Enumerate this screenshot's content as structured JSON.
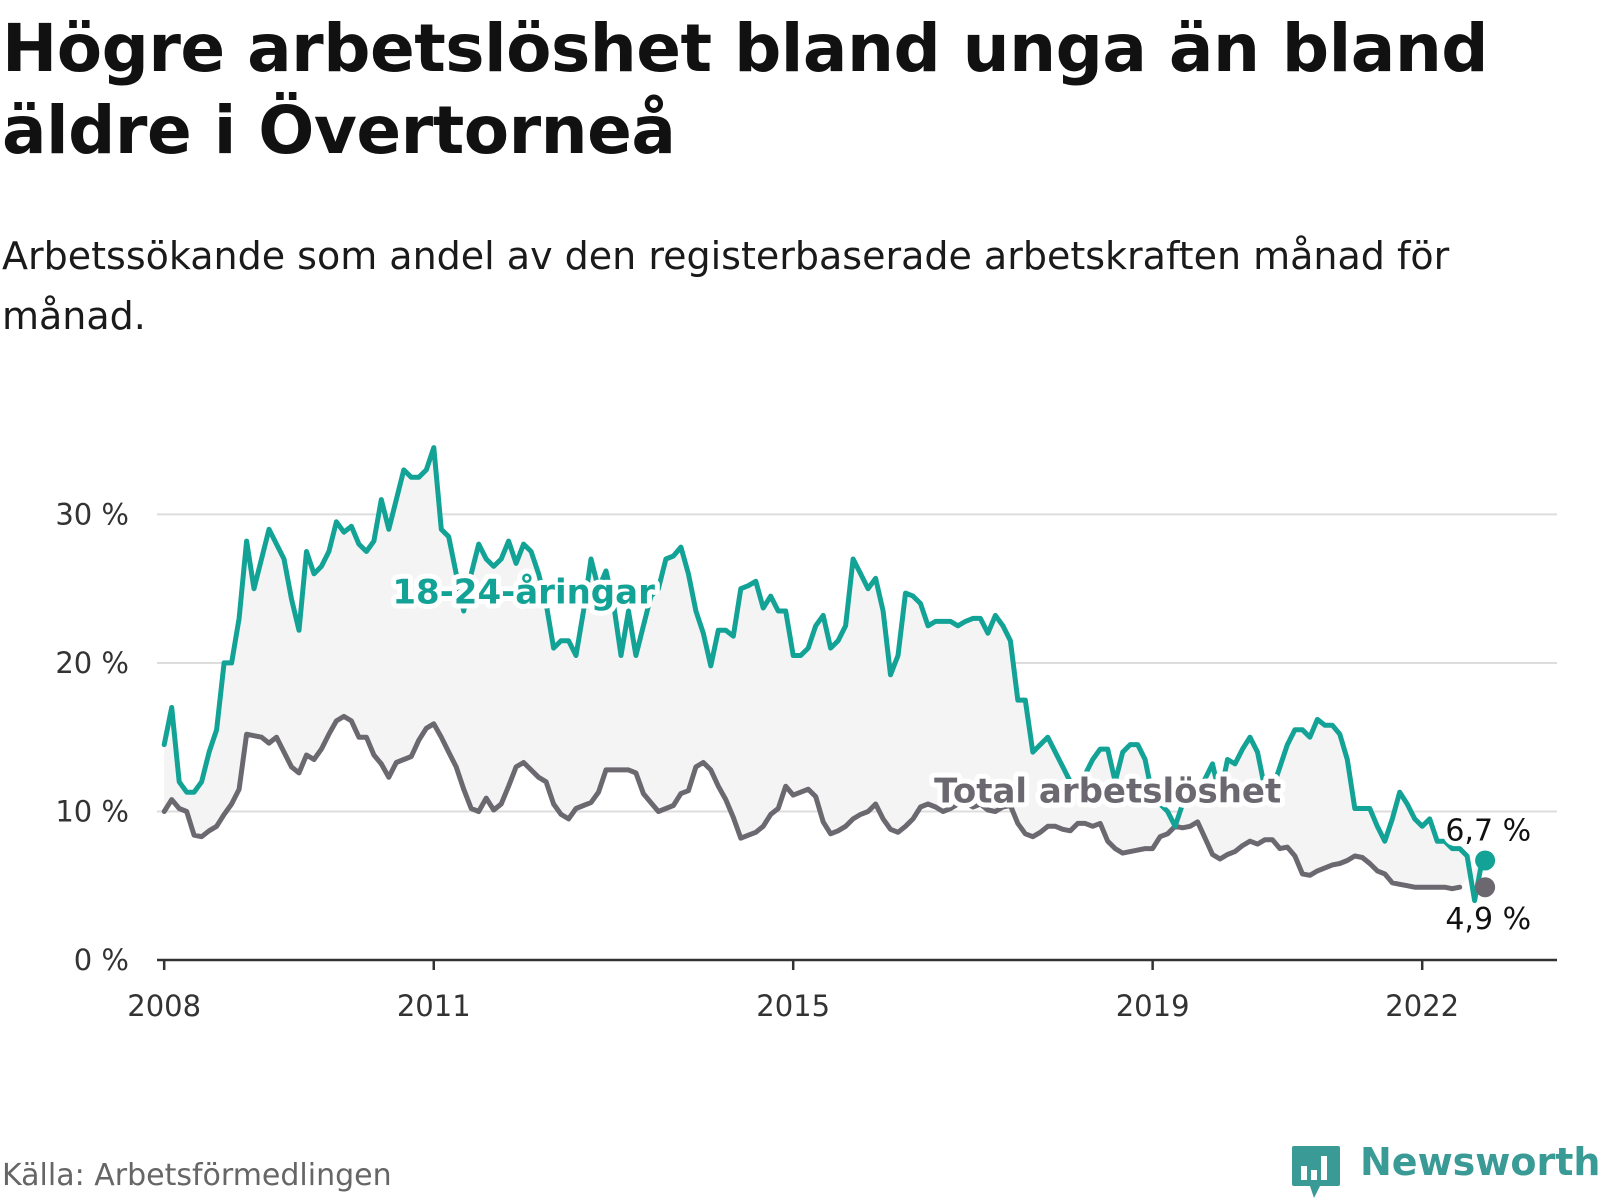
{
  "title": "Högre arbetslöshet bland unga än bland äldre i Övertorneå",
  "subtitle": "Arbetssökande som andel av den registerbaserade arbetskraften månad för månad.",
  "source": "Källa: Arbetsförmedlingen",
  "brand": {
    "name": "Newsworthy",
    "logo_icon": "bar-chart-bubble-icon"
  },
  "colors": {
    "youth": "#13a396",
    "total": "#6b6870",
    "band": "#f4f4f4",
    "grid": "#dddddd",
    "axis": "#333333"
  },
  "chart_data": {
    "type": "line",
    "title": "Högre arbetslöshet bland unga än bland äldre i Övertorneå",
    "xlabel": "",
    "ylabel": "",
    "ylim": [
      0,
      34
    ],
    "xlim": [
      2007.92,
      2023.5
    ],
    "yticks": [
      0,
      10,
      20,
      30
    ],
    "ytick_labels": [
      "0 %",
      "10 %",
      "20 %",
      "30 %"
    ],
    "xticks": [
      2008,
      2011,
      2015,
      2019,
      2022
    ],
    "xtick_labels": [
      "2008",
      "2011",
      "2015",
      "2019",
      "2022"
    ],
    "grid": true,
    "x_start": 2008.0,
    "x_step_months": 1,
    "series": [
      {
        "name": "18-24-åringar",
        "label": "18-24-åringar",
        "end_label": "6,7 %",
        "end_value": 6.7,
        "values": [
          14.5,
          17.0,
          12.0,
          11.3,
          11.3,
          12.0,
          14.0,
          15.5,
          20.0,
          20.0,
          23.0,
          28.2,
          25.0,
          27.0,
          29.0,
          28.0,
          27.0,
          24.3,
          22.2,
          27.5,
          26.0,
          26.5,
          27.5,
          29.5,
          28.8,
          29.2,
          28.0,
          27.5,
          28.2,
          31.0,
          29.0,
          31.0,
          33.0,
          32.5,
          32.5,
          33.0,
          34.5,
          29.0,
          28.5,
          26.0,
          23.5,
          26.0,
          28.0,
          27.0,
          26.5,
          27.0,
          28.2,
          26.7,
          28.0,
          27.5,
          26.0,
          24.0,
          21.0,
          21.5,
          21.5,
          20.5,
          23.5,
          27.0,
          25.0,
          26.2,
          24.0,
          20.5,
          23.5,
          20.5,
          22.5,
          24.5,
          25.0,
          27.0,
          27.2,
          27.8,
          26.0,
          23.5,
          22.0,
          19.8,
          22.2,
          22.2,
          21.8,
          25.0,
          25.2,
          25.5,
          23.7,
          24.5,
          23.5,
          23.5,
          20.5,
          20.5,
          21.0,
          22.5,
          23.2,
          21.0,
          21.5,
          22.5,
          27.0,
          26.0,
          25.0,
          25.7,
          23.5,
          19.2,
          20.5,
          24.7,
          24.5,
          24.0,
          22.5,
          22.8,
          22.8,
          22.8,
          22.5,
          22.8,
          23.0,
          23.0,
          22.0,
          23.2,
          22.5,
          21.5,
          17.5,
          17.5,
          14.0,
          14.5,
          15.0,
          14.0,
          13.0,
          12.0,
          11.5,
          12.5,
          13.5,
          14.2,
          14.2,
          12.0,
          14.0,
          14.5,
          14.5,
          13.5,
          11.0,
          10.5,
          10.0,
          9.0,
          10.5,
          11.5,
          11.0,
          12.2,
          13.2,
          11.0,
          13.5,
          13.2,
          14.2,
          15.0,
          14.0,
          11.5,
          11.5,
          13.0,
          14.5,
          15.5,
          15.5,
          15.0,
          16.2,
          15.8,
          15.8,
          15.2,
          13.5,
          10.2,
          10.2,
          10.2,
          9.0,
          8.0,
          9.5,
          11.3,
          10.5,
          9.5,
          9.0,
          9.5,
          8.0,
          8.0,
          7.5,
          7.5,
          7.0,
          4.0,
          6.7
        ]
      },
      {
        "name": "Total arbetslöshet",
        "label": "Total arbetslöshet",
        "end_label": "4,9 %",
        "end_value": 4.9,
        "values": [
          10.0,
          10.8,
          10.2,
          10.0,
          8.4,
          8.3,
          8.7,
          9.0,
          9.8,
          10.5,
          11.5,
          15.2,
          15.1,
          15.0,
          14.6,
          15.0,
          14.0,
          13.0,
          12.6,
          13.8,
          13.5,
          14.2,
          15.2,
          16.1,
          16.4,
          16.1,
          15.0,
          15.0,
          13.8,
          13.2,
          12.3,
          13.3,
          13.5,
          13.7,
          14.8,
          15.6,
          15.9,
          15.0,
          14.0,
          13.0,
          11.5,
          10.2,
          10.0,
          10.9,
          10.1,
          10.5,
          11.7,
          13.0,
          13.3,
          12.8,
          12.3,
          12.0,
          10.5,
          9.8,
          9.5,
          10.2,
          10.4,
          10.6,
          11.3,
          12.8,
          12.8,
          12.8,
          12.8,
          12.6,
          11.2,
          10.6,
          10.0,
          10.2,
          10.4,
          11.2,
          11.4,
          13.0,
          13.3,
          12.8,
          11.7,
          10.8,
          9.6,
          8.2,
          8.4,
          8.6,
          9.0,
          9.8,
          10.2,
          11.7,
          11.1,
          11.3,
          11.5,
          11.0,
          9.3,
          8.5,
          8.7,
          9.0,
          9.5,
          9.8,
          10.0,
          10.5,
          9.5,
          8.8,
          8.6,
          9.0,
          9.5,
          10.3,
          10.5,
          10.3,
          10.0,
          10.2,
          10.5,
          10.6,
          10.3,
          10.5,
          10.1,
          10.0,
          10.3,
          10.4,
          9.2,
          8.5,
          8.3,
          8.6,
          9.0,
          9.0,
          8.8,
          8.7,
          9.2,
          9.2,
          9.0,
          9.2,
          8.0,
          7.5,
          7.2,
          7.3,
          7.4,
          7.5,
          7.5,
          8.3,
          8.5,
          9.0,
          8.9,
          9.0,
          9.3,
          8.2,
          7.1,
          6.8,
          7.1,
          7.3,
          7.7,
          8.0,
          7.8,
          8.1,
          8.1,
          7.5,
          7.6,
          7.0,
          5.8,
          5.7,
          6.0,
          6.2,
          6.4,
          6.5,
          6.7,
          7.0,
          6.9,
          6.5,
          6.0,
          5.8,
          5.2,
          5.1,
          5.0,
          4.9,
          4.9,
          4.9,
          4.9,
          4.9,
          4.8,
          4.9
        ]
      }
    ],
    "shaded_band": "between-series",
    "legend": "inline-labels"
  }
}
